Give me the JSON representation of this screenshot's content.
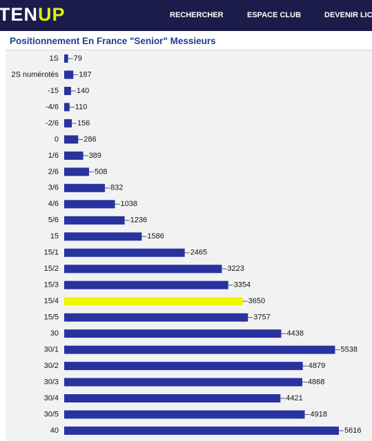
{
  "header": {
    "logo": {
      "main": "TEN",
      "accent": "UP"
    },
    "nav": [
      "RECHERCHER",
      "ESPACE CLUB",
      "DEVENIR LICENCIÉ"
    ]
  },
  "chart_data": {
    "type": "bar",
    "orientation": "horizontal",
    "title": "Positionnement En France \"Senior\" Messieurs",
    "categories": [
      "1S",
      "2S numérotés",
      "-15",
      "-4/6",
      "-2/6",
      "0",
      "1/6",
      "2/6",
      "3/6",
      "4/6",
      "5/6",
      "15",
      "15/1",
      "15/2",
      "15/3",
      "15/4",
      "15/5",
      "30",
      "30/1",
      "30/2",
      "30/3",
      "30/4",
      "30/5",
      "40"
    ],
    "values": [
      79,
      187,
      140,
      110,
      156,
      286,
      389,
      508,
      832,
      1038,
      1236,
      1586,
      2465,
      3223,
      3354,
      3650,
      3757,
      4438,
      5538,
      4879,
      4868,
      4421,
      4918,
      5616
    ],
    "colors": [
      "#28339f",
      "#28339f",
      "#28339f",
      "#28339f",
      "#28339f",
      "#28339f",
      "#28339f",
      "#28339f",
      "#28339f",
      "#28339f",
      "#28339f",
      "#28339f",
      "#28339f",
      "#28339f",
      "#28339f",
      "#eef700",
      "#28339f",
      "#28339f",
      "#28339f",
      "#28339f",
      "#28339f",
      "#28339f",
      "#28339f",
      "#28339f"
    ]
  }
}
